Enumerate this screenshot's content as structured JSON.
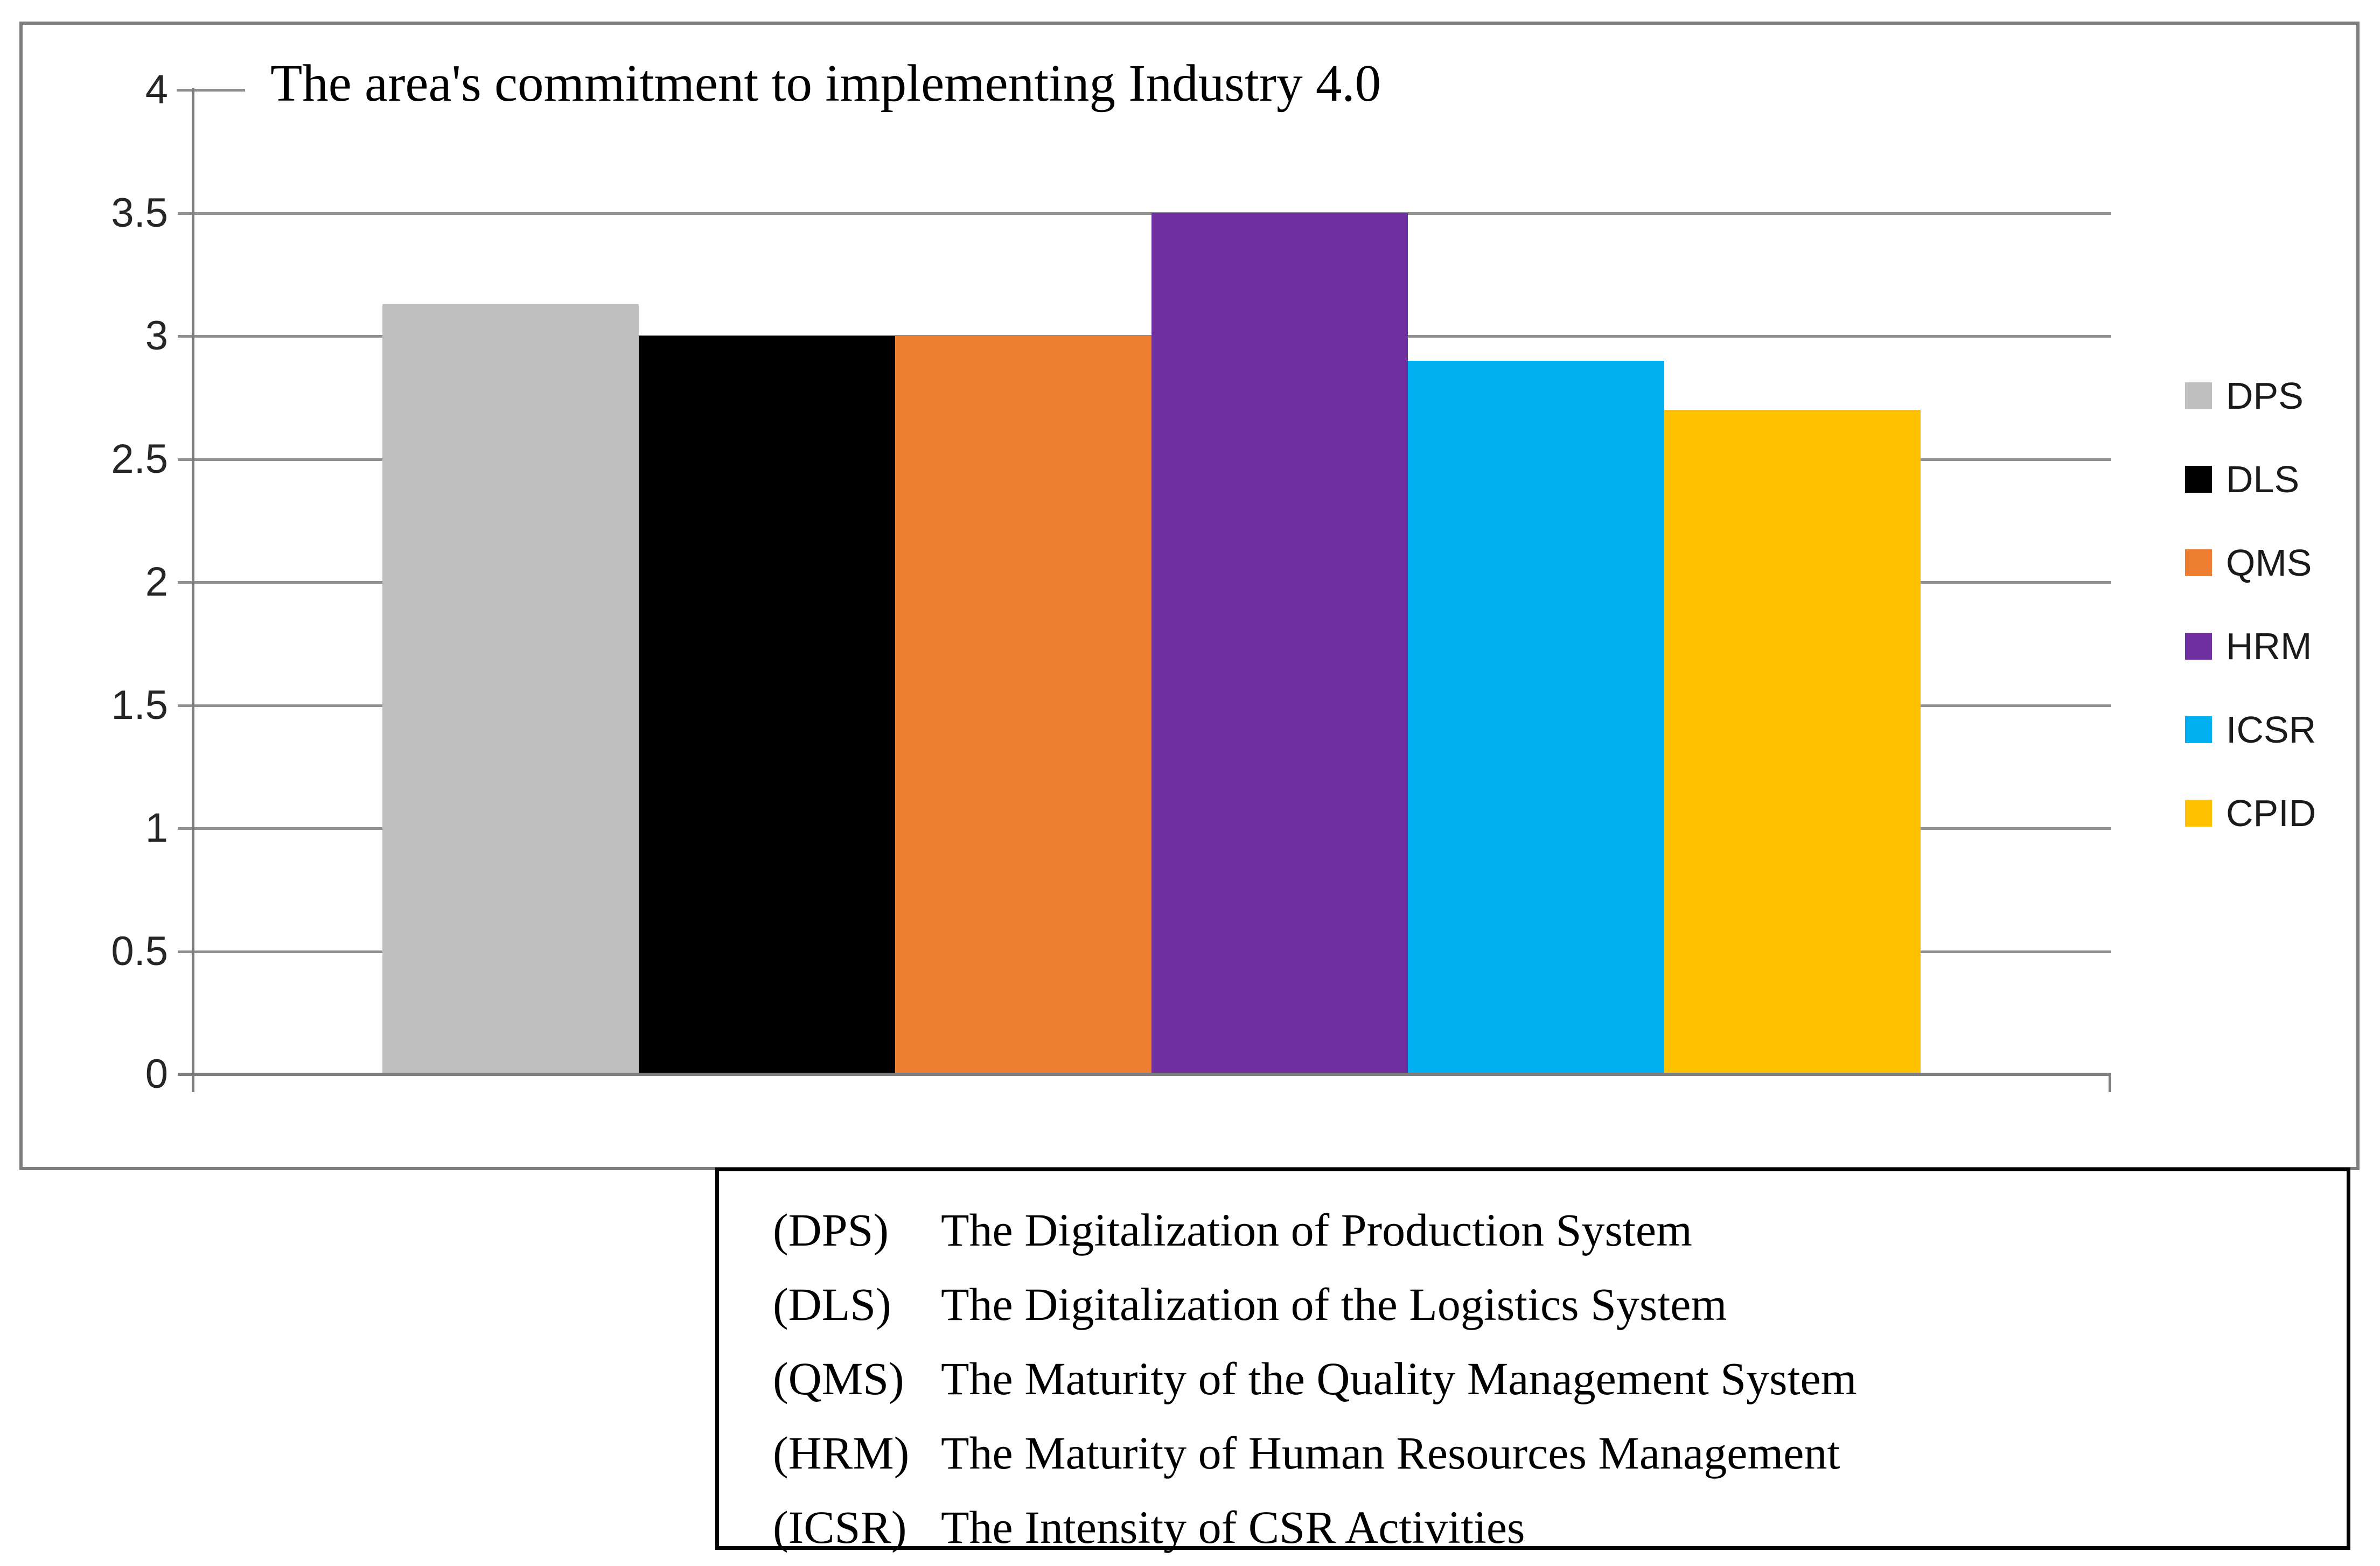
{
  "chart_data": {
    "type": "bar",
    "title": "The area's commitment to implementing Industry 4.0",
    "categories": [
      "DPS",
      "DLS",
      "QMS",
      "HRM",
      "ICSR",
      "CPID"
    ],
    "values": [
      3.13,
      3.0,
      3.0,
      3.5,
      2.9,
      2.7
    ],
    "colors": [
      "#BFBFBF",
      "#000000",
      "#ED7D31",
      "#7030A0",
      "#00B0F0",
      "#FFC000"
    ],
    "xlabel": "",
    "ylabel": "",
    "ylim": [
      0,
      4
    ],
    "ytick_labels": [
      "0",
      "0.5",
      "1",
      "1.5",
      "2",
      "2.5",
      "3",
      "3.5",
      "4"
    ],
    "grid": true,
    "legend": {
      "position": "right",
      "labels": [
        "DPS",
        "DLS",
        "QMS",
        "HRM",
        "ICSR",
        "CPID"
      ]
    }
  },
  "definitions": {
    "items": [
      {
        "abbr": "(DPS)",
        "text": "The Digitalization of Production System"
      },
      {
        "abbr": "(DLS)",
        "text": "The Digitalization of the Logistics System"
      },
      {
        "abbr": "(QMS)",
        "text": "The Maturity of the Quality Management System"
      },
      {
        "abbr": "(HRM)",
        "text": "The Maturity of Human Resources Management"
      },
      {
        "abbr": "(ICSR)",
        "text": "The Intensity of CSR Activities"
      }
    ]
  }
}
